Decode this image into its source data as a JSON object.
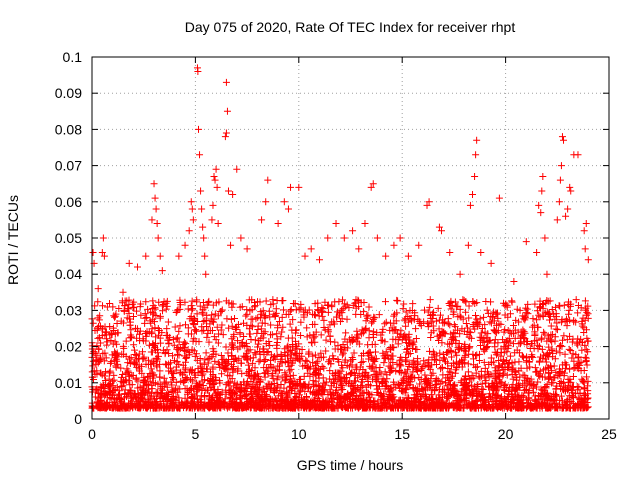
{
  "chart_data": {
    "type": "scatter",
    "title": "Day 075 of 2020, Rate Of TEC Index for receiver rhpt",
    "xlabel": "GPS time / hours",
    "ylabel": "ROTI / TECUs",
    "xlim": [
      0,
      25
    ],
    "ylim": [
      0,
      0.1
    ],
    "x_ticks": [
      "0",
      "5",
      "10",
      "15",
      "20",
      "25"
    ],
    "y_ticks": [
      "0",
      "0.01",
      "0.02",
      "0.03",
      "0.04",
      "0.05",
      "0.06",
      "0.07",
      "0.08",
      "0.09",
      "0.1"
    ],
    "grid": true,
    "marker": "+",
    "marker_color": "#ff0000",
    "series": [
      {
        "values": [
          [
            0.05,
            0.046
          ],
          [
            0.1,
            0.043
          ],
          [
            0.3,
            0.036
          ],
          [
            0.5,
            0.046
          ],
          [
            0.6,
            0.045
          ],
          [
            0.55,
            0.05
          ],
          [
            1.5,
            0.035
          ],
          [
            1.8,
            0.043
          ],
          [
            2.2,
            0.042
          ],
          [
            2.6,
            0.045
          ],
          [
            2.9,
            0.055
          ],
          [
            3.0,
            0.065
          ],
          [
            3.05,
            0.061
          ],
          [
            3.1,
            0.058
          ],
          [
            3.15,
            0.054
          ],
          [
            3.2,
            0.05
          ],
          [
            3.3,
            0.045
          ],
          [
            3.4,
            0.041
          ],
          [
            4.2,
            0.045
          ],
          [
            4.5,
            0.048
          ],
          [
            4.7,
            0.052
          ],
          [
            4.8,
            0.06
          ],
          [
            4.85,
            0.058
          ],
          [
            4.9,
            0.055
          ],
          [
            5.1,
            0.097
          ],
          [
            5.12,
            0.096
          ],
          [
            5.15,
            0.08
          ],
          [
            5.2,
            0.073
          ],
          [
            5.25,
            0.063
          ],
          [
            5.3,
            0.058
          ],
          [
            5.35,
            0.053
          ],
          [
            5.4,
            0.05
          ],
          [
            5.45,
            0.045
          ],
          [
            5.5,
            0.04
          ],
          [
            5.8,
            0.055
          ],
          [
            5.85,
            0.059
          ],
          [
            5.9,
            0.067
          ],
          [
            5.95,
            0.066
          ],
          [
            6.0,
            0.069
          ],
          [
            6.05,
            0.064
          ],
          [
            6.1,
            0.054
          ],
          [
            6.5,
            0.093
          ],
          [
            6.55,
            0.085
          ],
          [
            6.5,
            0.079
          ],
          [
            6.45,
            0.078
          ],
          [
            6.6,
            0.063
          ],
          [
            6.7,
            0.048
          ],
          [
            6.8,
            0.062
          ],
          [
            7.0,
            0.069
          ],
          [
            7.2,
            0.05
          ],
          [
            7.5,
            0.047
          ],
          [
            8.2,
            0.055
          ],
          [
            8.4,
            0.06
          ],
          [
            8.5,
            0.066
          ],
          [
            9.0,
            0.054
          ],
          [
            9.3,
            0.06
          ],
          [
            9.5,
            0.058
          ],
          [
            9.6,
            0.064
          ],
          [
            10.0,
            0.064
          ],
          [
            10.3,
            0.045
          ],
          [
            10.6,
            0.047
          ],
          [
            11.0,
            0.044
          ],
          [
            11.4,
            0.05
          ],
          [
            11.8,
            0.054
          ],
          [
            12.2,
            0.05
          ],
          [
            12.6,
            0.052
          ],
          [
            12.9,
            0.047
          ],
          [
            13.2,
            0.054
          ],
          [
            13.5,
            0.064
          ],
          [
            13.6,
            0.065
          ],
          [
            13.8,
            0.05
          ],
          [
            14.2,
            0.045
          ],
          [
            14.6,
            0.048
          ],
          [
            14.9,
            0.05
          ],
          [
            15.3,
            0.045
          ],
          [
            15.8,
            0.048
          ],
          [
            16.2,
            0.059
          ],
          [
            16.3,
            0.06
          ],
          [
            16.8,
            0.053
          ],
          [
            16.9,
            0.052
          ],
          [
            17.3,
            0.046
          ],
          [
            17.8,
            0.04
          ],
          [
            18.2,
            0.048
          ],
          [
            18.3,
            0.059
          ],
          [
            18.4,
            0.062
          ],
          [
            18.5,
            0.067
          ],
          [
            18.55,
            0.073
          ],
          [
            18.6,
            0.077
          ],
          [
            18.8,
            0.046
          ],
          [
            19.3,
            0.043
          ],
          [
            19.7,
            0.061
          ],
          [
            20.4,
            0.038
          ],
          [
            20.7,
            0.03
          ],
          [
            21.0,
            0.049
          ],
          [
            21.5,
            0.046
          ],
          [
            21.6,
            0.059
          ],
          [
            21.7,
            0.057
          ],
          [
            21.75,
            0.063
          ],
          [
            21.8,
            0.067
          ],
          [
            21.9,
            0.05
          ],
          [
            22.0,
            0.04
          ],
          [
            22.5,
            0.055
          ],
          [
            22.6,
            0.06
          ],
          [
            22.65,
            0.066
          ],
          [
            22.7,
            0.07
          ],
          [
            22.75,
            0.078
          ],
          [
            22.8,
            0.077
          ],
          [
            22.9,
            0.056
          ],
          [
            23.0,
            0.058
          ],
          [
            23.1,
            0.064
          ],
          [
            23.15,
            0.063
          ],
          [
            23.3,
            0.073
          ],
          [
            23.5,
            0.073
          ],
          [
            23.8,
            0.052
          ],
          [
            23.85,
            0.047
          ],
          [
            23.9,
            0.054
          ],
          [
            24.0,
            0.044
          ]
        ]
      }
    ]
  }
}
